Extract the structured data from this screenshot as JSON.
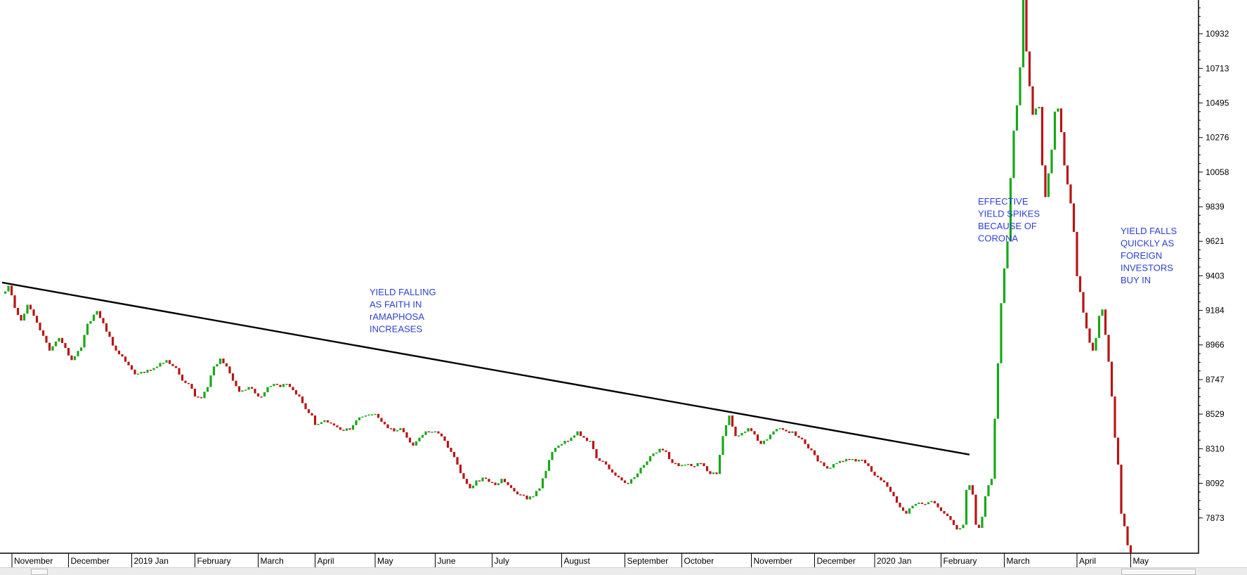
{
  "chart_data": {
    "type": "candlestick",
    "title": "",
    "xlabel": "",
    "ylabel": "",
    "ylim": [
      7650,
      11150
    ],
    "y_ticks": [
      10932,
      10713,
      10495,
      10276,
      10058,
      9839,
      9621,
      9403,
      9184,
      8966,
      8747,
      8529,
      8310,
      8092,
      7873
    ],
    "x_labels": [
      "November",
      "December",
      "2019 Jan",
      "February",
      "March",
      "April",
      "May",
      "June",
      "July",
      "August",
      "September",
      "October",
      "November",
      "December",
      "2020 Jan",
      "February",
      "March",
      "April",
      "May"
    ],
    "month_start_index": [
      0,
      21,
      41,
      61,
      81,
      99,
      118,
      137,
      155,
      177,
      197,
      215,
      237,
      257,
      276,
      297,
      317,
      340,
      357
    ],
    "series_anchors": [
      [
        0,
        9290
      ],
      [
        2,
        9340
      ],
      [
        4,
        9200
      ],
      [
        6,
        9120
      ],
      [
        8,
        9220
      ],
      [
        10,
        9150
      ],
      [
        15,
        8930
      ],
      [
        18,
        9010
      ],
      [
        22,
        8870
      ],
      [
        25,
        8950
      ],
      [
        27,
        9100
      ],
      [
        30,
        9180
      ],
      [
        33,
        9050
      ],
      [
        36,
        8930
      ],
      [
        39,
        8860
      ],
      [
        42,
        8780
      ],
      [
        45,
        8790
      ],
      [
        48,
        8820
      ],
      [
        52,
        8870
      ],
      [
        55,
        8820
      ],
      [
        57,
        8740
      ],
      [
        59,
        8720
      ],
      [
        61,
        8640
      ],
      [
        63,
        8630
      ],
      [
        65,
        8700
      ],
      [
        67,
        8830
      ],
      [
        69,
        8880
      ],
      [
        71,
        8830
      ],
      [
        73,
        8740
      ],
      [
        75,
        8670
      ],
      [
        78,
        8700
      ],
      [
        80,
        8660
      ],
      [
        82,
        8640
      ],
      [
        84,
        8700
      ],
      [
        86,
        8720
      ],
      [
        88,
        8700
      ],
      [
        90,
        8720
      ],
      [
        92,
        8680
      ],
      [
        94,
        8640
      ],
      [
        96,
        8560
      ],
      [
        98,
        8520
      ],
      [
        99,
        8460
      ],
      [
        102,
        8490
      ],
      [
        104,
        8470
      ],
      [
        107,
        8430
      ],
      [
        110,
        8430
      ],
      [
        112,
        8490
      ],
      [
        115,
        8520
      ],
      [
        118,
        8530
      ],
      [
        120,
        8480
      ],
      [
        122,
        8440
      ],
      [
        124,
        8420
      ],
      [
        126,
        8440
      ],
      [
        128,
        8380
      ],
      [
        130,
        8330
      ],
      [
        132,
        8380
      ],
      [
        134,
        8420
      ],
      [
        137,
        8420
      ],
      [
        140,
        8360
      ],
      [
        142,
        8290
      ],
      [
        144,
        8210
      ],
      [
        146,
        8120
      ],
      [
        148,
        8060
      ],
      [
        150,
        8110
      ],
      [
        153,
        8120
      ],
      [
        156,
        8080
      ],
      [
        158,
        8120
      ],
      [
        160,
        8080
      ],
      [
        162,
        8040
      ],
      [
        164,
        8020
      ],
      [
        166,
        7990
      ],
      [
        168,
        8010
      ],
      [
        170,
        8060
      ],
      [
        172,
        8170
      ],
      [
        174,
        8290
      ],
      [
        176,
        8330
      ],
      [
        178,
        8360
      ],
      [
        180,
        8380
      ],
      [
        182,
        8420
      ],
      [
        184,
        8380
      ],
      [
        186,
        8360
      ],
      [
        188,
        8250
      ],
      [
        190,
        8230
      ],
      [
        192,
        8180
      ],
      [
        194,
        8140
      ],
      [
        196,
        8110
      ],
      [
        198,
        8090
      ],
      [
        200,
        8130
      ],
      [
        202,
        8190
      ],
      [
        204,
        8230
      ],
      [
        206,
        8280
      ],
      [
        208,
        8310
      ],
      [
        210,
        8290
      ],
      [
        212,
        8220
      ],
      [
        214,
        8200
      ],
      [
        216,
        8210
      ],
      [
        218,
        8200
      ],
      [
        220,
        8220
      ],
      [
        222,
        8200
      ],
      [
        224,
        8150
      ],
      [
        226,
        8150
      ],
      [
        228,
        8390
      ],
      [
        230,
        8520
      ],
      [
        232,
        8390
      ],
      [
        234,
        8410
      ],
      [
        236,
        8440
      ],
      [
        238,
        8400
      ],
      [
        240,
        8340
      ],
      [
        242,
        8370
      ],
      [
        244,
        8420
      ],
      [
        246,
        8440
      ],
      [
        248,
        8420
      ],
      [
        250,
        8420
      ],
      [
        252,
        8380
      ],
      [
        254,
        8340
      ],
      [
        256,
        8300
      ],
      [
        258,
        8230
      ],
      [
        260,
        8200
      ],
      [
        262,
        8190
      ],
      [
        264,
        8220
      ],
      [
        266,
        8230
      ],
      [
        268,
        8240
      ],
      [
        270,
        8230
      ],
      [
        272,
        8240
      ],
      [
        274,
        8200
      ],
      [
        276,
        8140
      ],
      [
        278,
        8110
      ],
      [
        280,
        8070
      ],
      [
        282,
        8010
      ],
      [
        284,
        7940
      ],
      [
        286,
        7900
      ],
      [
        288,
        7950
      ],
      [
        290,
        7970
      ],
      [
        292,
        7960
      ],
      [
        294,
        7980
      ],
      [
        296,
        7940
      ],
      [
        298,
        7900
      ],
      [
        300,
        7860
      ],
      [
        302,
        7800
      ],
      [
        304,
        7830
      ],
      [
        305,
        8050
      ],
      [
        306,
        8080
      ],
      [
        307,
        8020
      ],
      [
        308,
        7830
      ],
      [
        309,
        7810
      ],
      [
        310,
        7880
      ],
      [
        311,
        8010
      ],
      [
        312,
        8080
      ],
      [
        313,
        8120
      ],
      [
        314,
        8500
      ],
      [
        315,
        8850
      ],
      [
        316,
        9230
      ],
      [
        317,
        9450
      ],
      [
        318,
        9620
      ],
      [
        319,
        10020
      ],
      [
        320,
        10320
      ],
      [
        321,
        10480
      ],
      [
        322,
        10720
      ],
      [
        323,
        11150
      ],
      [
        324,
        10820
      ],
      [
        325,
        10600
      ],
      [
        326,
        10420
      ],
      [
        327,
        10460
      ],
      [
        328,
        10470
      ],
      [
        329,
        10100
      ],
      [
        330,
        9900
      ],
      [
        331,
        10050
      ],
      [
        332,
        10200
      ],
      [
        333,
        10440
      ],
      [
        334,
        10460
      ],
      [
        335,
        10310
      ],
      [
        336,
        10100
      ],
      [
        337,
        9980
      ],
      [
        338,
        9860
      ],
      [
        339,
        9680
      ],
      [
        340,
        9400
      ],
      [
        341,
        9300
      ],
      [
        342,
        9170
      ],
      [
        343,
        9070
      ],
      [
        344,
        8980
      ],
      [
        345,
        8930
      ],
      [
        346,
        9010
      ],
      [
        347,
        9150
      ],
      [
        348,
        9190
      ],
      [
        349,
        9030
      ],
      [
        350,
        8860
      ],
      [
        351,
        8640
      ],
      [
        352,
        8380
      ],
      [
        353,
        8210
      ],
      [
        354,
        7900
      ],
      [
        355,
        7820
      ],
      [
        356,
        7700
      ],
      [
        357,
        7600
      ]
    ],
    "trendline": {
      "start": [
        0,
        9360
      ],
      "end": [
        306,
        8273
      ]
    },
    "annotations": [
      {
        "lines": [
          "YIELD FALLING",
          "AS FAITH IN",
          "rAMAPHOSA",
          "INCREASES"
        ]
      },
      {
        "lines": [
          "EFFECTIVE",
          "YIELD SPIKES",
          "BECAUSE OF",
          "CORONA"
        ]
      },
      {
        "lines": [
          "YIELD FALLS",
          "QUICKLY AS",
          "FOREIGN",
          "INVESTORS",
          "BUY IN"
        ]
      }
    ],
    "up_color": "#18a818",
    "down_color": "#b81414",
    "annotation_color": "#2b3fd4",
    "trendline_color": "#000000",
    "grid": false
  }
}
